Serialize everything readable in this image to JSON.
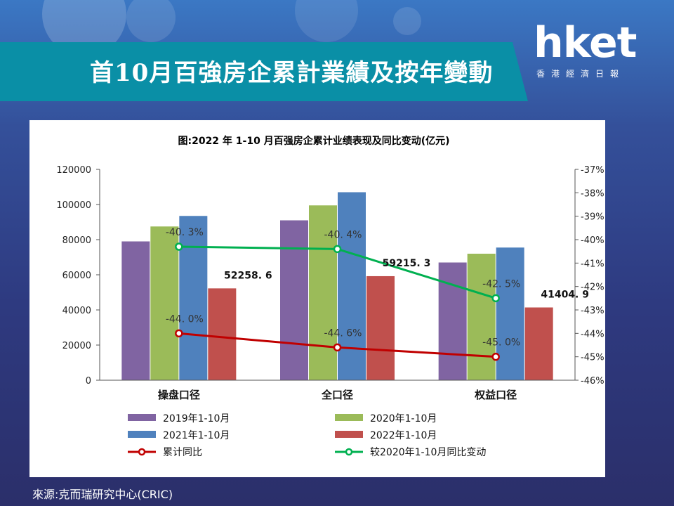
{
  "title": "首10月百強房企累計業績及按年變動",
  "logo": {
    "main": "hket",
    "sub": "香港經濟日報"
  },
  "source": "來源:克而瑞研究中心(CRIC)",
  "colors": {
    "s2019": "#8064a2",
    "s2020": "#9bbb59",
    "s2021": "#4f81bd",
    "s2022": "#c0504d",
    "cumulative": "#c00000",
    "vs2020": "#00b050"
  },
  "chart_data": {
    "type": "bar",
    "title": "图:2022 年 1-10 月百强房企累计业绩表现及同比变动(亿元)",
    "categories": [
      "操盘口径",
      "全口径",
      "权益口径"
    ],
    "ylim": [
      0,
      120000
    ],
    "y_ticks": [
      "0",
      "20000",
      "40000",
      "60000",
      "80000",
      "100000",
      "120000"
    ],
    "y2lim": [
      -46,
      -37
    ],
    "y2_ticks": [
      "-46%",
      "-45%",
      "-44%",
      "-43%",
      "-42%",
      "-41%",
      "-40%",
      "-39%",
      "-38%",
      "-37%"
    ],
    "series": [
      {
        "name": "2019年1-10月",
        "values": [
          79000,
          91000,
          67000
        ]
      },
      {
        "name": "2020年1-10月",
        "values": [
          87500,
          99500,
          72000
        ]
      },
      {
        "name": "2021年1-10月",
        "values": [
          93500,
          107000,
          75500
        ]
      },
      {
        "name": "2022年1-10月",
        "values": [
          52258.6,
          59215.3,
          41404.9
        ],
        "labels": [
          "52258. 6",
          "59215. 3",
          "41404. 9"
        ]
      }
    ],
    "lines": [
      {
        "name": "累计同比",
        "values": [
          -44.0,
          -44.6,
          -45.0
        ],
        "labels": [
          "-44. 0%",
          "-44. 6%",
          "-45. 0%"
        ]
      },
      {
        "name": "较2020年1-10月同比变动",
        "values": [
          -40.3,
          -40.4,
          -42.5
        ],
        "labels": [
          "-40. 3%",
          "-40. 4%",
          "-42. 5%"
        ]
      }
    ],
    "legend": [
      "2019年1-10月",
      "2020年1-10月",
      "2021年1-10月",
      "2022年1-10月",
      "累计同比",
      "较2020年1-10月同比变动"
    ],
    "legend_position": "bottom"
  }
}
